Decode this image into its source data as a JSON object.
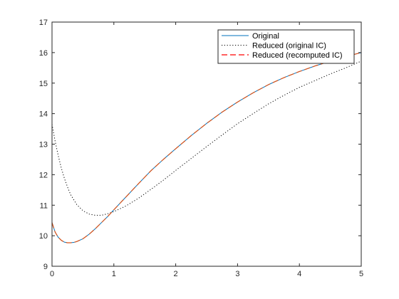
{
  "chart_data": {
    "type": "line",
    "title": "",
    "xlabel": "",
    "ylabel": "",
    "xlim": [
      0,
      5
    ],
    "ylim": [
      9,
      17
    ],
    "xticks": [
      0,
      1,
      2,
      3,
      4,
      5
    ],
    "yticks": [
      9,
      10,
      11,
      12,
      13,
      14,
      15,
      16,
      17
    ],
    "grid": false,
    "legend_position": "top-right",
    "series": [
      {
        "name": "Original",
        "color": "#0072BD",
        "style": "solid",
        "x": [
          0,
          0.05,
          0.1,
          0.15,
          0.2,
          0.25,
          0.3,
          0.35,
          0.4,
          0.5,
          0.6,
          0.7,
          0.8,
          0.9,
          1.0,
          1.2,
          1.4,
          1.6,
          1.8,
          2.0,
          2.25,
          2.5,
          2.75,
          3.0,
          3.25,
          3.5,
          3.75,
          4.0,
          4.25,
          4.5,
          4.75,
          5.0
        ],
        "y": [
          10.43,
          10.12,
          9.95,
          9.85,
          9.79,
          9.77,
          9.77,
          9.78,
          9.81,
          9.9,
          10.05,
          10.23,
          10.43,
          10.63,
          10.85,
          11.28,
          11.71,
          12.13,
          12.5,
          12.85,
          13.28,
          13.68,
          14.05,
          14.38,
          14.68,
          14.95,
          15.18,
          15.38,
          15.56,
          15.72,
          15.87,
          16.0
        ]
      },
      {
        "name": "Reduced (original IC)",
        "color": "#000000",
        "style": "dotted",
        "x": [
          0,
          0.05,
          0.1,
          0.15,
          0.2,
          0.25,
          0.3,
          0.4,
          0.5,
          0.6,
          0.7,
          0.8,
          0.9,
          1.0,
          1.2,
          1.4,
          1.6,
          1.8,
          2.0,
          2.25,
          2.5,
          2.75,
          3.0,
          3.25,
          3.5,
          3.75,
          4.0,
          4.25,
          4.5,
          4.75,
          5.0
        ],
        "y": [
          13.65,
          13.1,
          12.63,
          12.22,
          11.88,
          11.6,
          11.35,
          11.02,
          10.82,
          10.71,
          10.67,
          10.67,
          10.72,
          10.79,
          10.98,
          11.23,
          11.52,
          11.82,
          12.14,
          12.53,
          12.92,
          13.3,
          13.67,
          14.0,
          14.32,
          14.6,
          14.86,
          15.08,
          15.3,
          15.5,
          15.72
        ]
      },
      {
        "name": "Reduced (recomputed IC)",
        "color": "#D95319",
        "legend_color": "#FF0000",
        "style": "dashed",
        "x": [
          0,
          0.05,
          0.1,
          0.15,
          0.2,
          0.25,
          0.3,
          0.35,
          0.4,
          0.5,
          0.6,
          0.7,
          0.8,
          0.9,
          1.0,
          1.2,
          1.4,
          1.6,
          1.8,
          2.0,
          2.25,
          2.5,
          2.75,
          3.0,
          3.25,
          3.5,
          3.75,
          4.0,
          4.25,
          4.5,
          4.75,
          5.0
        ],
        "y": [
          10.43,
          10.12,
          9.95,
          9.85,
          9.79,
          9.77,
          9.77,
          9.78,
          9.81,
          9.9,
          10.05,
          10.23,
          10.43,
          10.63,
          10.85,
          11.28,
          11.71,
          12.13,
          12.5,
          12.85,
          13.28,
          13.68,
          14.05,
          14.38,
          14.68,
          14.95,
          15.18,
          15.38,
          15.56,
          15.72,
          15.87,
          16.0
        ]
      }
    ]
  }
}
